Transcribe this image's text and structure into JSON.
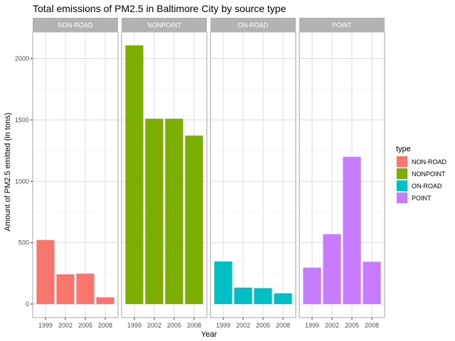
{
  "chart_data": {
    "type": "bar",
    "title": "Total emissions of PM2.5 in Baltimore City by source type",
    "xlabel": "Year",
    "ylabel": "Amount of PM2.5 emitted (in tons)",
    "categories": [
      "1999",
      "2002",
      "2005",
      "2008"
    ],
    "ylim": [
      0,
      2200
    ],
    "yticks": [
      0,
      500,
      1000,
      1500,
      2000
    ],
    "grid": true,
    "facet_by": "type",
    "legend": {
      "title": "type",
      "placement": "right",
      "entries": [
        "NON-ROAD",
        "NONPOINT",
        "ON-ROAD",
        "POINT"
      ]
    },
    "series": [
      {
        "name": "NON-ROAD",
        "color": "#F8766D",
        "values": [
          522,
          242,
          248,
          55
        ]
      },
      {
        "name": "NONPOINT",
        "color": "#7CAE00",
        "values": [
          2108,
          1510,
          1510,
          1373
        ]
      },
      {
        "name": "ON-ROAD",
        "color": "#00BFC4",
        "values": [
          347,
          134,
          130,
          88
        ]
      },
      {
        "name": "POINT",
        "color": "#C77CFF",
        "values": [
          297,
          570,
          1200,
          345
        ]
      }
    ]
  }
}
